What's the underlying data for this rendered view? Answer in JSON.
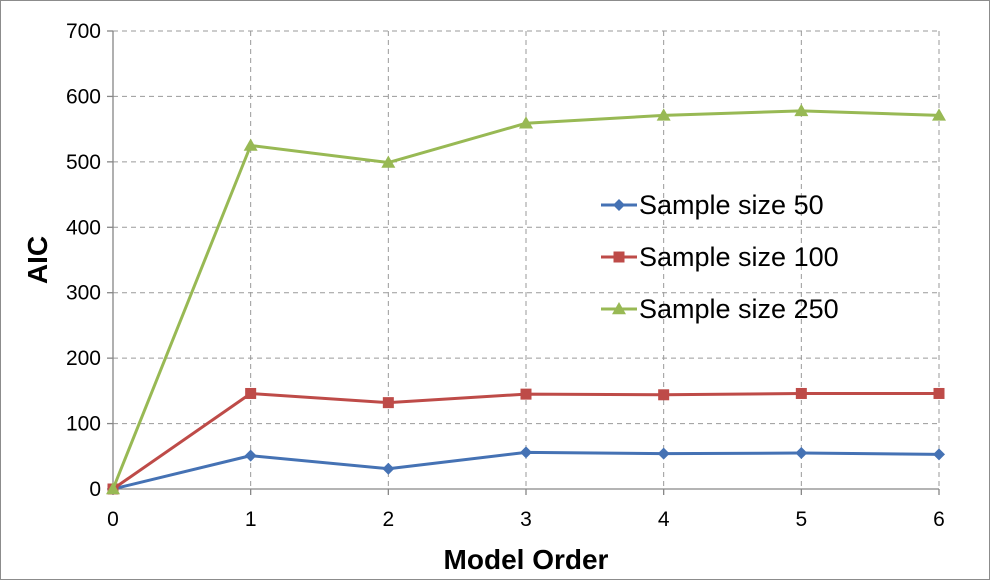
{
  "chart_data": {
    "type": "line",
    "title": "",
    "xlabel": "Model Order",
    "ylabel": "AIC",
    "x": [
      0,
      1,
      2,
      3,
      4,
      5,
      6
    ],
    "xlim": [
      0,
      6
    ],
    "ylim": [
      0,
      700
    ],
    "yticks": [
      0,
      100,
      200,
      300,
      400,
      500,
      600,
      700
    ],
    "xticks": [
      0,
      1,
      2,
      3,
      4,
      5,
      6
    ],
    "grid": true,
    "legend_position": "right",
    "series": [
      {
        "name": "Sample size 50",
        "marker": "diamond",
        "color": "#4572B4",
        "values": [
          0,
          51,
          31,
          56,
          54,
          55,
          53
        ]
      },
      {
        "name": "Sample size 100",
        "marker": "square",
        "color": "#BE4B48",
        "values": [
          0,
          146,
          132,
          145,
          144,
          146,
          146
        ]
      },
      {
        "name": "Sample size 250",
        "marker": "triangle",
        "color": "#98B954",
        "values": [
          0,
          525,
          499,
          559,
          571,
          578,
          571
        ]
      }
    ]
  }
}
